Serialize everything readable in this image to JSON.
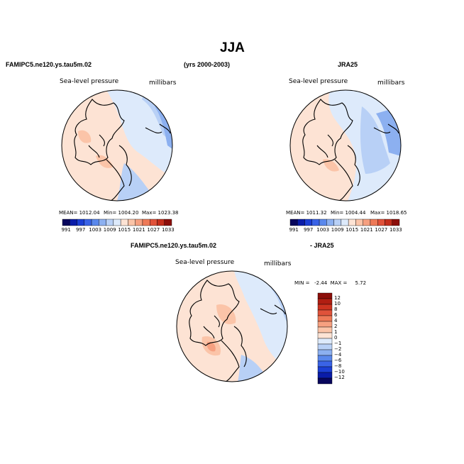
{
  "figure": {
    "title": "JJA",
    "model_name": "FAMIPC5.ne120.ys.tau5m.02",
    "years": "(yrs 2000-2003)",
    "obs_name": "JRA25",
    "diff_left": "FAMIPC5.ne120.ys.tau5m.02",
    "diff_right": "- JRA25"
  },
  "panels": {
    "model": {
      "variable": "Sea-level pressure",
      "units": "millibars",
      "mean": "MEAN= 1012.04",
      "min": "Min= 1004.20",
      "max": "Max= 1023.38"
    },
    "obs": {
      "variable": "Sea-level pressure",
      "units": "millibars",
      "mean": "MEAN= 1011.32",
      "min": "Min= 1004.44",
      "max": "Max= 1018.65"
    },
    "diff": {
      "variable": "Sea-level pressure",
      "units": "millibars",
      "minmax": "MIN =   -2.44  MAX =     5.72"
    }
  },
  "colorbars": {
    "abs_ticks": [
      "991",
      "997",
      "1003",
      "1009",
      "1015",
      "1021",
      "1027",
      "1033"
    ],
    "abs_colors": [
      "#08065c",
      "#0a1ca8",
      "#1c3fd4",
      "#3a63e6",
      "#5a88ec",
      "#8cb0f0",
      "#b8d0f6",
      "#ddeafb",
      "#fde3d4",
      "#fbc4a8",
      "#f6a080",
      "#ee7a58",
      "#e0523a",
      "#c42e1c",
      "#8c0e0a"
    ],
    "diff_ticks": [
      "12",
      "10",
      "8",
      "6",
      "4",
      "2",
      "1",
      "0",
      "−1",
      "−2",
      "−4",
      "−6",
      "−8",
      "−10",
      "−12"
    ],
    "diff_colors": [
      "#8c0e0a",
      "#b01e12",
      "#cc3320",
      "#e0523a",
      "#ee7a58",
      "#f6a080",
      "#fbc4a8",
      "#fde3d4",
      "#ddeafb",
      "#b8d0f6",
      "#8cb0f0",
      "#5a88ec",
      "#3a63e6",
      "#1c3fd4",
      "#0a1ca8",
      "#08065c"
    ]
  },
  "map_colors": {
    "lightred": "#fde3d4",
    "salmon": "#fbc4a8",
    "orange": "#f6a080",
    "deep": "#ee7a58",
    "lightblue": "#ddeafb",
    "blue": "#b8d0f6",
    "midblue": "#8cb0f0",
    "strongblue": "#5a88ec"
  }
}
